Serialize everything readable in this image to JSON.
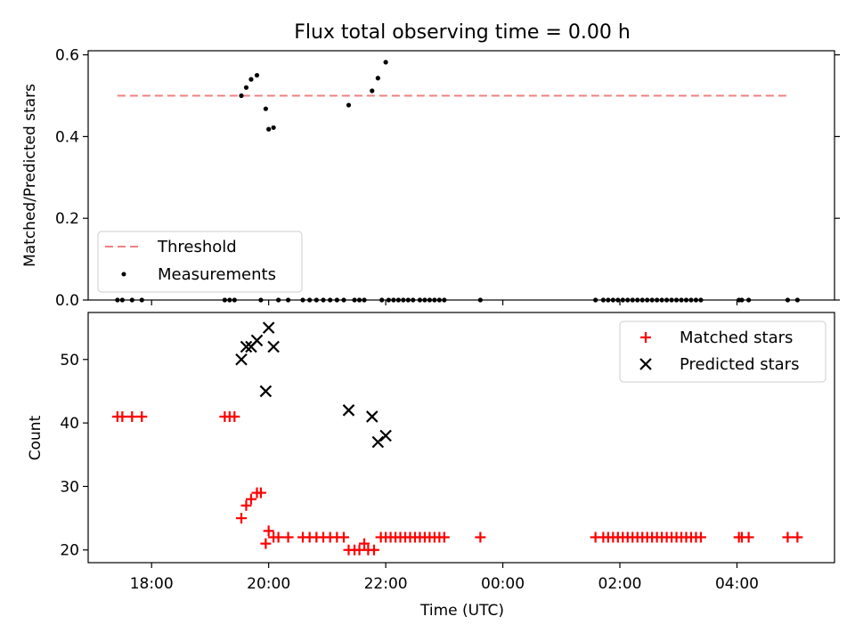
{
  "chart_data": [
    {
      "type": "scatter",
      "title": "Flux total observing time = 0.00 h",
      "ylabel": "Matched/Predicted stars",
      "ylim": [
        0.0,
        0.61
      ],
      "yticks": [
        0.0,
        0.2,
        0.4,
        0.6
      ],
      "ytick_labels": [
        "0.0",
        "0.2",
        "0.4",
        "0.6"
      ],
      "legend_position": "lower-left",
      "threshold": {
        "name": "Threshold",
        "y": 0.5,
        "x_start": "17:25",
        "x_end": "04:55",
        "color": "#f08080",
        "style": "dashed"
      },
      "measurements": {
        "name": "Measurements",
        "color": "#000000",
        "points": [
          [
            "17:25",
            0.0
          ],
          [
            "17:30",
            0.0
          ],
          [
            "17:40",
            0.0
          ],
          [
            "17:50",
            0.0
          ],
          [
            "19:15",
            0.0
          ],
          [
            "19:20",
            0.0
          ],
          [
            "19:25",
            0.0
          ],
          [
            "19:32",
            0.5
          ],
          [
            "19:37",
            0.52
          ],
          [
            "19:42",
            0.54
          ],
          [
            "19:48",
            0.55
          ],
          [
            "19:52",
            0.0
          ],
          [
            "19:57",
            0.468
          ],
          [
            "20:00",
            0.418
          ],
          [
            "20:05",
            0.422
          ],
          [
            "20:10",
            0.0
          ],
          [
            "20:20",
            0.0
          ],
          [
            "20:35",
            0.0
          ],
          [
            "20:42",
            0.0
          ],
          [
            "20:49",
            0.0
          ],
          [
            "20:56",
            0.0
          ],
          [
            "21:03",
            0.0
          ],
          [
            "21:10",
            0.0
          ],
          [
            "21:17",
            0.0
          ],
          [
            "21:22",
            0.477
          ],
          [
            "21:28",
            0.0
          ],
          [
            "21:33",
            0.0
          ],
          [
            "21:38",
            0.0
          ],
          [
            "21:46",
            0.512
          ],
          [
            "21:52",
            0.543
          ],
          [
            "21:56",
            0.0
          ],
          [
            "22:00",
            0.582
          ],
          [
            "22:03",
            0.0
          ],
          [
            "22:08",
            0.0
          ],
          [
            "22:13",
            0.0
          ],
          [
            "22:18",
            0.0
          ],
          [
            "22:23",
            0.0
          ],
          [
            "22:28",
            0.0
          ],
          [
            "22:35",
            0.0
          ],
          [
            "22:40",
            0.0
          ],
          [
            "22:45",
            0.0
          ],
          [
            "22:50",
            0.0
          ],
          [
            "22:55",
            0.0
          ],
          [
            "23:00",
            0.0
          ],
          [
            "23:37",
            0.0
          ],
          [
            "01:35",
            0.0
          ],
          [
            "01:43",
            0.0
          ],
          [
            "01:48",
            0.0
          ],
          [
            "01:53",
            0.0
          ],
          [
            "01:58",
            0.0
          ],
          [
            "02:03",
            0.0
          ],
          [
            "02:08",
            0.0
          ],
          [
            "02:13",
            0.0
          ],
          [
            "02:18",
            0.0
          ],
          [
            "02:23",
            0.0
          ],
          [
            "02:28",
            0.0
          ],
          [
            "02:33",
            0.0
          ],
          [
            "02:38",
            0.0
          ],
          [
            "02:43",
            0.0
          ],
          [
            "02:48",
            0.0
          ],
          [
            "02:53",
            0.0
          ],
          [
            "02:58",
            0.0
          ],
          [
            "03:03",
            0.0
          ],
          [
            "03:08",
            0.0
          ],
          [
            "03:13",
            0.0
          ],
          [
            "03:18",
            0.0
          ],
          [
            "03:23",
            0.0
          ],
          [
            "04:02",
            0.0
          ],
          [
            "04:05",
            0.0
          ],
          [
            "04:12",
            0.0
          ],
          [
            "04:52",
            0.0
          ],
          [
            "05:02",
            0.0
          ]
        ]
      }
    },
    {
      "type": "scatter",
      "xlabel": "Time (UTC)",
      "ylabel": "Count",
      "ylim": [
        18,
        57.4
      ],
      "yticks": [
        20,
        30,
        40,
        50
      ],
      "ytick_labels": [
        "20",
        "30",
        "40",
        "50"
      ],
      "xticks": [
        "18:00",
        "20:00",
        "22:00",
        "00:00",
        "02:00",
        "04:00"
      ],
      "legend_position": "upper-right",
      "series": [
        {
          "name": "Matched stars",
          "marker": "plus",
          "color": "#ff0000",
          "points": [
            [
              "17:25",
              41
            ],
            [
              "17:30",
              41
            ],
            [
              "17:40",
              41
            ],
            [
              "17:50",
              41
            ],
            [
              "19:15",
              41
            ],
            [
              "19:20",
              41
            ],
            [
              "19:25",
              41
            ],
            [
              "19:32",
              25
            ],
            [
              "19:37",
              27
            ],
            [
              "19:42",
              28
            ],
            [
              "19:48",
              29
            ],
            [
              "19:52",
              29
            ],
            [
              "19:57",
              21
            ],
            [
              "20:00",
              23
            ],
            [
              "20:05",
              22
            ],
            [
              "20:10",
              22
            ],
            [
              "20:20",
              22
            ],
            [
              "20:35",
              22
            ],
            [
              "20:42",
              22
            ],
            [
              "20:49",
              22
            ],
            [
              "20:56",
              22
            ],
            [
              "21:03",
              22
            ],
            [
              "21:10",
              22
            ],
            [
              "21:17",
              22
            ],
            [
              "21:22",
              20
            ],
            [
              "21:28",
              20
            ],
            [
              "21:33",
              20
            ],
            [
              "21:38",
              21
            ],
            [
              "21:42",
              20
            ],
            [
              "21:48",
              20
            ],
            [
              "21:55",
              22
            ],
            [
              "22:00",
              22
            ],
            [
              "22:05",
              22
            ],
            [
              "22:10",
              22
            ],
            [
              "22:15",
              22
            ],
            [
              "22:20",
              22
            ],
            [
              "22:25",
              22
            ],
            [
              "22:30",
              22
            ],
            [
              "22:35",
              22
            ],
            [
              "22:40",
              22
            ],
            [
              "22:45",
              22
            ],
            [
              "22:50",
              22
            ],
            [
              "22:55",
              22
            ],
            [
              "23:00",
              22
            ],
            [
              "23:37",
              22
            ],
            [
              "01:35",
              22
            ],
            [
              "01:43",
              22
            ],
            [
              "01:48",
              22
            ],
            [
              "01:53",
              22
            ],
            [
              "01:58",
              22
            ],
            [
              "02:03",
              22
            ],
            [
              "02:08",
              22
            ],
            [
              "02:13",
              22
            ],
            [
              "02:18",
              22
            ],
            [
              "02:23",
              22
            ],
            [
              "02:28",
              22
            ],
            [
              "02:33",
              22
            ],
            [
              "02:38",
              22
            ],
            [
              "02:43",
              22
            ],
            [
              "02:48",
              22
            ],
            [
              "02:53",
              22
            ],
            [
              "02:58",
              22
            ],
            [
              "03:03",
              22
            ],
            [
              "03:08",
              22
            ],
            [
              "03:13",
              22
            ],
            [
              "03:18",
              22
            ],
            [
              "03:23",
              22
            ],
            [
              "04:02",
              22
            ],
            [
              "04:05",
              22
            ],
            [
              "04:12",
              22
            ],
            [
              "04:52",
              22
            ],
            [
              "05:02",
              22
            ]
          ]
        },
        {
          "name": "Predicted stars",
          "marker": "x",
          "color": "#000000",
          "points": [
            [
              "19:32",
              50
            ],
            [
              "19:37",
              52
            ],
            [
              "19:42",
              52
            ],
            [
              "19:48",
              53
            ],
            [
              "19:57",
              45
            ],
            [
              "20:00",
              55
            ],
            [
              "20:05",
              52
            ],
            [
              "21:22",
              42
            ],
            [
              "21:46",
              41
            ],
            [
              "21:52",
              37
            ],
            [
              "22:00",
              38
            ]
          ]
        }
      ]
    }
  ]
}
